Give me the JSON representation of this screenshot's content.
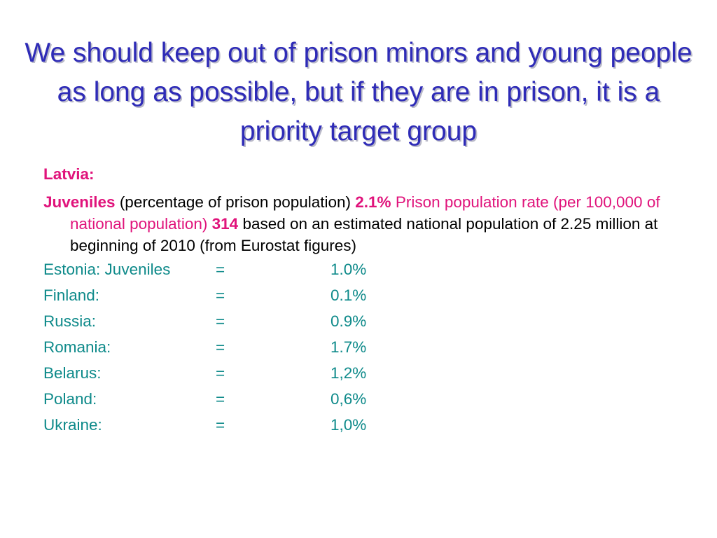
{
  "slide": {
    "title": "We should keep out of prison minors and young people as long as possible, but if they are in prison, it is a priority target group",
    "latvia": {
      "heading": "Latvia:",
      "juveniles_label": "Juveniles",
      "juveniles_desc": " (percentage of prison population) ",
      "juveniles_value": "2.1%",
      "rate_label": " Prison population rate (per 100,000 of national population) ",
      "rate_value": "314",
      "rate_note": " based on an estimated national population of 2.25 million at beginning of 2010 (from Eurostat figures)"
    },
    "countries": [
      {
        "name": "Estonia:  Juveniles",
        "eq": "=",
        "value": "1.0%"
      },
      {
        "name": "Finland:",
        "eq": "=",
        "value": "0.1%"
      },
      {
        "name": "Russia:",
        "eq": "=",
        "value": "0.9%"
      },
      {
        "name": "Romania:",
        "eq": "=",
        "value": "1.7%"
      },
      {
        "name": "Belarus:",
        "eq": "=",
        "value": "1,2%"
      },
      {
        "name": "Poland:",
        "eq": "=",
        "value": "0,6%"
      },
      {
        "name": "Ukraine:",
        "eq": "=",
        "value": "1,0%"
      }
    ],
    "colors": {
      "title": "#2e2bb7",
      "accent": "#e0137b",
      "countries": "#0e8a8a",
      "body": "#000000"
    }
  }
}
